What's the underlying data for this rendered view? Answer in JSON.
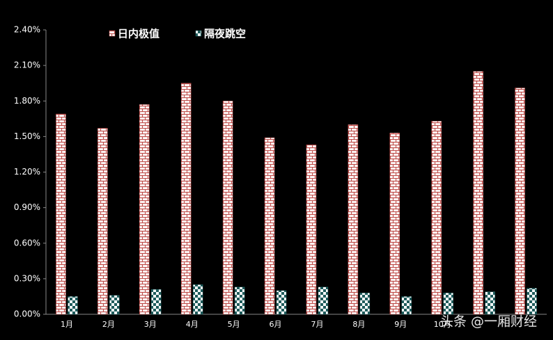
{
  "chart_data": {
    "type": "bar",
    "categories": [
      "1月",
      "2月",
      "3月",
      "4月",
      "5月",
      "6月",
      "7月",
      "8月",
      "9月",
      "10月",
      null,
      null
    ],
    "series": [
      {
        "name": "日内极值",
        "color": "#c0504d",
        "pattern": "brick",
        "values": [
          1.69,
          1.57,
          1.77,
          1.95,
          1.8,
          1.49,
          1.43,
          1.6,
          1.53,
          1.63,
          2.05,
          1.91
        ]
      },
      {
        "name": "隔夜跳空",
        "color": "#1f5c5c",
        "pattern": "checker",
        "values": [
          0.15,
          0.16,
          0.21,
          0.25,
          0.23,
          0.2,
          0.23,
          0.18,
          0.15,
          0.18,
          0.19,
          0.22
        ]
      }
    ],
    "ylim": [
      0,
      2.4
    ],
    "yticks": [
      {
        "value": 0,
        "label": "0.00%"
      },
      {
        "value": 0.3,
        "label": "0.30%"
      },
      {
        "value": 0.6,
        "label": "0.60%"
      },
      {
        "value": 0.9,
        "label": "0.90%"
      },
      {
        "value": 1.2,
        "label": "1.20%"
      },
      {
        "value": 1.5,
        "label": "1.50%"
      },
      {
        "value": 1.8,
        "label": "1.80%"
      },
      {
        "value": 2.1,
        "label": "2.10%"
      },
      {
        "value": 2.4,
        "label": "2.40%"
      }
    ],
    "grid": false,
    "legend": "top",
    "watermark": "头条 @一厢财经"
  }
}
